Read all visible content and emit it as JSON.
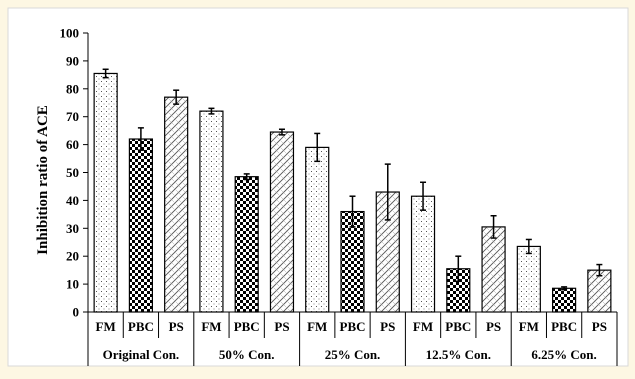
{
  "chart_data": {
    "type": "bar",
    "ylabel": "Inhibition ratio of ACE",
    "ylim": [
      0,
      100
    ],
    "y_ticks": [
      "0",
      "10",
      "20",
      "30",
      "40",
      "50",
      "60",
      "70",
      "80",
      "90",
      "100"
    ],
    "grid": false,
    "legend": "none",
    "groups": [
      {
        "name": "Original Con.",
        "bars": [
          {
            "label": "FM",
            "value": 85.5,
            "error": 1.5,
            "pattern": "dots"
          },
          {
            "label": "PBC",
            "value": 62.0,
            "error": 4.0,
            "pattern": "checker"
          },
          {
            "label": "PS",
            "value": 77.0,
            "error": 2.5,
            "pattern": "hatch"
          }
        ]
      },
      {
        "name": "50% Con.",
        "bars": [
          {
            "label": "FM",
            "value": 72.0,
            "error": 1.0,
            "pattern": "dots"
          },
          {
            "label": "PBC",
            "value": 48.5,
            "error": 1.0,
            "pattern": "checker"
          },
          {
            "label": "PS",
            "value": 64.5,
            "error": 1.0,
            "pattern": "hatch"
          }
        ]
      },
      {
        "name": "25% Con.",
        "bars": [
          {
            "label": "FM",
            "value": 59.0,
            "error": 5.0,
            "pattern": "dots"
          },
          {
            "label": "PBC",
            "value": 36.0,
            "error": 5.5,
            "pattern": "checker"
          },
          {
            "label": "PS",
            "value": 43.0,
            "error": 10.0,
            "pattern": "hatch"
          }
        ]
      },
      {
        "name": "12.5% Con.",
        "bars": [
          {
            "label": "FM",
            "value": 41.5,
            "error": 5.0,
            "pattern": "dots"
          },
          {
            "label": "PBC",
            "value": 15.5,
            "error": 4.5,
            "pattern": "checker"
          },
          {
            "label": "PS",
            "value": 30.5,
            "error": 4.0,
            "pattern": "hatch"
          }
        ]
      },
      {
        "name": "6.25% Con.",
        "bars": [
          {
            "label": "FM",
            "value": 23.5,
            "error": 2.5,
            "pattern": "dots"
          },
          {
            "label": "PBC",
            "value": 8.5,
            "error": 0.5,
            "pattern": "checker"
          },
          {
            "label": "PS",
            "value": 15.0,
            "error": 2.0,
            "pattern": "hatch"
          }
        ]
      }
    ]
  },
  "colors": {
    "background": "#fdf7e3",
    "plot_background": "#ffffff",
    "frame": "#d9d9d9",
    "ink": "#000000"
  }
}
